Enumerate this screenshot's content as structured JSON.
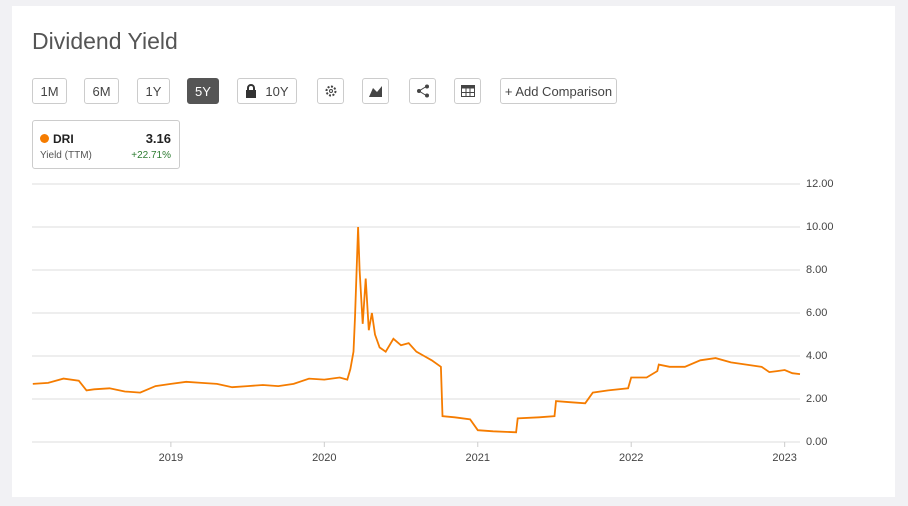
{
  "header": {
    "title": "Dividend Yield"
  },
  "toolbar": {
    "ranges": [
      "1M",
      "6M",
      "1Y",
      "5Y",
      "10Y"
    ],
    "active": "5Y",
    "add": "+ Add Comparison"
  },
  "legend_box": {
    "ticker": "DRI",
    "value": "3.16",
    "metric": "Yield (TTM)",
    "change": "+22.71%"
  },
  "chart_data": {
    "type": "line",
    "grid": true,
    "xlim": [
      2018.095,
      2023.1
    ],
    "xticks": [
      2019,
      2020,
      2021,
      2022,
      2023
    ],
    "ylim": [
      0,
      12
    ],
    "yticks": [
      {
        "value": 0,
        "label": "0.00"
      },
      {
        "value": 2,
        "label": "2.00"
      },
      {
        "value": 4,
        "label": "4.00"
      },
      {
        "value": 6,
        "label": "6.00"
      },
      {
        "value": 8,
        "label": "8.00"
      },
      {
        "value": 10,
        "label": "10.00"
      },
      {
        "value": 12,
        "label": "12.00"
      }
    ],
    "series": [
      {
        "name": "DRI",
        "color": "#f57c00",
        "x": [
          2018.1,
          2018.2,
          2018.3,
          2018.4,
          2018.45,
          2018.5,
          2018.6,
          2018.7,
          2018.8,
          2018.9,
          2019.0,
          2019.1,
          2019.2,
          2019.3,
          2019.4,
          2019.5,
          2019.6,
          2019.7,
          2019.8,
          2019.9,
          2020.0,
          2020.1,
          2020.15,
          2020.17,
          2020.19,
          2020.2,
          2020.22,
          2020.23,
          2020.25,
          2020.27,
          2020.29,
          2020.31,
          2020.33,
          2020.36,
          2020.4,
          2020.45,
          2020.5,
          2020.55,
          2020.6,
          2020.65,
          2020.7,
          2020.76,
          2020.77,
          2020.85,
          2020.95,
          2021.0,
          2021.1,
          2021.25,
          2021.26,
          2021.4,
          2021.5,
          2021.51,
          2021.6,
          2021.7,
          2021.75,
          2021.85,
          2021.98,
          2022.0,
          2022.1,
          2022.17,
          2022.18,
          2022.25,
          2022.35,
          2022.45,
          2022.55,
          2022.65,
          2022.75,
          2022.85,
          2022.9,
          2022.95,
          2023.0,
          2023.05,
          2023.1
        ],
        "values": [
          2.7,
          2.75,
          2.95,
          2.85,
          2.4,
          2.45,
          2.5,
          2.35,
          2.3,
          2.6,
          2.7,
          2.8,
          2.75,
          2.7,
          2.55,
          2.6,
          2.65,
          2.6,
          2.7,
          2.95,
          2.9,
          3.0,
          2.9,
          3.4,
          4.2,
          5.8,
          10.0,
          8.0,
          5.5,
          7.6,
          5.2,
          6.0,
          5.0,
          4.4,
          4.2,
          4.8,
          4.5,
          4.6,
          4.2,
          4.0,
          3.8,
          3.5,
          1.2,
          1.15,
          1.05,
          0.55,
          0.5,
          0.45,
          1.1,
          1.15,
          1.2,
          1.9,
          1.85,
          1.8,
          2.3,
          2.4,
          2.5,
          3.0,
          3.0,
          3.3,
          3.6,
          3.5,
          3.5,
          3.8,
          3.9,
          3.7,
          3.6,
          3.5,
          3.25,
          3.3,
          3.35,
          3.2,
          3.16
        ]
      }
    ]
  }
}
